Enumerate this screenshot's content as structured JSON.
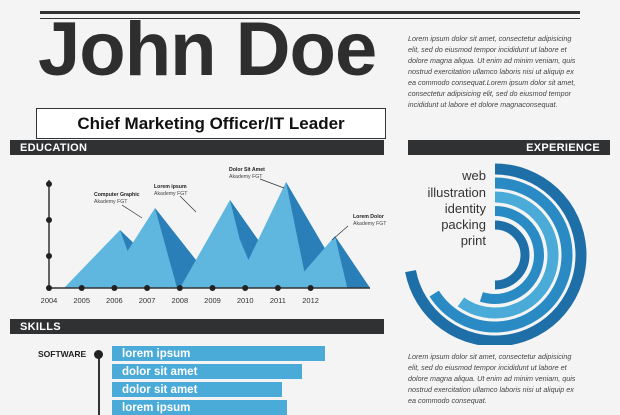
{
  "header": {
    "name": "John Doe",
    "role": "Chief Marketing Officer/IT Leader"
  },
  "intro_text": "Lorem ipsum dolor sit amet, consectetur adipisicing elit, sed do eiusmod tempor incididunt ut labore et dolore magna aliqua. Ut enim ad minim veniam, quis nostrud exercitation ullamco laboris nisi ut aliquip ex ea commodo consequat.Lorem ipsum dolor sit amet, consectetur adipisicing elit, sed do eiusmod tempor incididunt ut labore et dolore magnaconsequat.",
  "lower_text": "Lorem ipsum dolor sit amet, consectetur adipisicing elit, sed do eiusmod tempor incididunt ut labore et dolore magna aliqua. Ut enim ad minim veniam, quis nostrud exercitation ullamco laboris nisi ut aliquip ex ea commodo consequat.",
  "sections": {
    "education": "EDUCATION",
    "experience": "EXPERIENCE",
    "skills": "SKILLS"
  },
  "experience": {
    "items": [
      "web",
      "illustration",
      "identity",
      "packing",
      "print"
    ],
    "colors": [
      "#1e6ea7",
      "#2a8bc4",
      "#4aaad8",
      "#2a8bc4",
      "#1e6ea7"
    ],
    "arc_fractions": [
      0.72,
      0.66,
      0.6,
      0.55,
      0.5
    ]
  },
  "education_chart": {
    "years": [
      "2004",
      "2005",
      "2006",
      "2007",
      "2008",
      "2009",
      "2010",
      "2011",
      "2012"
    ],
    "labels": [
      {
        "title": "Computer Graphic",
        "sub": "Akademy FGT"
      },
      {
        "title": "Lorem ipsum",
        "sub": "Akademy FGT"
      },
      {
        "title": "Dolor Sit Amet",
        "sub": "Akademy FGT"
      },
      {
        "title": "Lorem Dolor",
        "sub": "Akademy FGT"
      }
    ],
    "colors": {
      "light": "#5fb7e0",
      "dark": "#2a7fb8",
      "axis": "#333333"
    }
  },
  "skills": {
    "label": "SOFTWARE",
    "items": [
      {
        "label": "lorem ipsum",
        "level": 0.85
      },
      {
        "label": "dolor sit amet",
        "level": 0.76
      },
      {
        "label": "dolor sit amet",
        "level": 0.68
      },
      {
        "label": "lorem ipsum",
        "level": 0.7
      }
    ]
  }
}
